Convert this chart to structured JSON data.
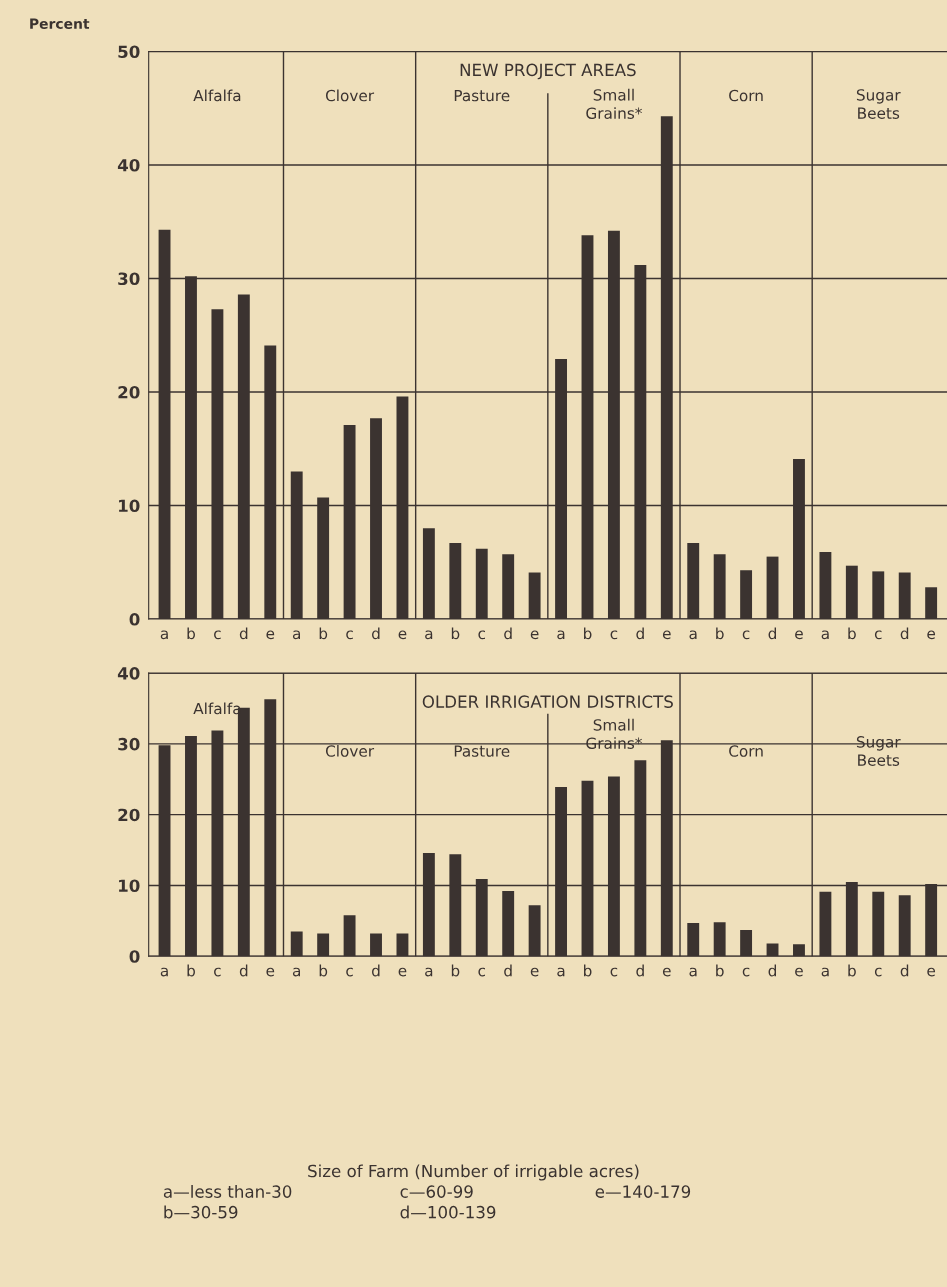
{
  "chart_data": [
    {
      "type": "bar",
      "title": "NEW PROJECT AREAS",
      "ylabel": "Percent",
      "categories": [
        "a",
        "b",
        "c",
        "d",
        "e",
        "a",
        "b",
        "c",
        "d",
        "e",
        "a",
        "b",
        "c",
        "d",
        "e",
        "a",
        "b",
        "c",
        "d",
        "e",
        "a",
        "b",
        "c",
        "d",
        "e",
        "a",
        "b",
        "c",
        "d",
        "e"
      ],
      "values": [
        34.3,
        30.2,
        27.3,
        28.6,
        24.1,
        13.0,
        10.7,
        17.1,
        17.7,
        19.6,
        8.0,
        6.7,
        6.2,
        5.7,
        4.1,
        22.9,
        33.8,
        34.2,
        31.2,
        44.3,
        6.7,
        5.7,
        4.3,
        5.5,
        14.1,
        5.9,
        4.7,
        4.2,
        4.1,
        2.8
      ],
      "color": "#3b3330",
      "ylim": [
        0,
        50
      ],
      "yticks": [
        0,
        10,
        20,
        30,
        40,
        50
      ],
      "grid": "y",
      "annotations": [
        "Alfalfa",
        "Clover",
        "Pasture",
        "Small\nGrains*",
        "Corn",
        "Sugar\nBeets"
      ]
    },
    {
      "type": "bar",
      "title": "OLDER IRRIGATION DISTRICTS",
      "categories": [
        "a",
        "b",
        "c",
        "d",
        "e",
        "a",
        "b",
        "c",
        "d",
        "e",
        "a",
        "b",
        "c",
        "d",
        "e",
        "a",
        "b",
        "c",
        "d",
        "e",
        "a",
        "b",
        "c",
        "d",
        "e",
        "a",
        "b",
        "c",
        "d",
        "e"
      ],
      "values": [
        29.8,
        31.1,
        31.9,
        35.1,
        36.3,
        3.5,
        3.2,
        5.8,
        3.2,
        3.2,
        14.6,
        14.4,
        10.9,
        9.2,
        7.2,
        23.9,
        24.8,
        25.4,
        27.7,
        30.5,
        4.7,
        4.8,
        3.7,
        1.8,
        1.7,
        9.1,
        10.5,
        9.1,
        8.6,
        10.2
      ],
      "color": "#3b3330",
      "ylim": [
        0,
        40
      ],
      "yticks": [
        0,
        10,
        20,
        30,
        40
      ],
      "grid": "y",
      "annotations": [
        "Alfalfa",
        "Clover",
        "Pasture",
        "Small\nGrains*",
        "Corn",
        "Sugar\nBeets",
        "Size of Farm (Number of irrigable acres)",
        "a—less than-30",
        "b—30-59",
        "c—60-99",
        "d—100-139",
        "e—140-179"
      ]
    }
  ]
}
